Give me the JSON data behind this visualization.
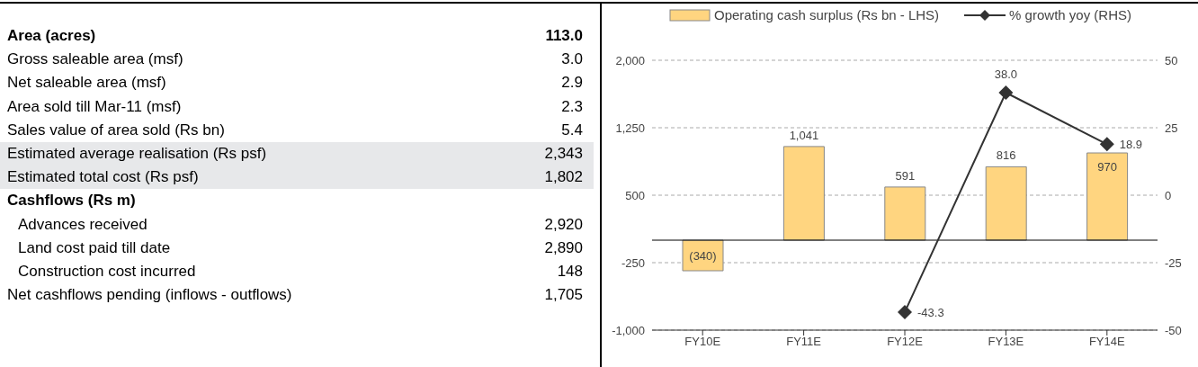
{
  "chart_data": [
    {
      "type": "other",
      "categories": [
        "Area (acres)",
        "Gross saleable area (msf)",
        "Net saleable area (msf)",
        "Area sold till Mar-11 (msf)",
        "Sales value of area sold (Rs bn)",
        "Estimated average realisation (Rs psf)",
        "Estimated total cost (Rs psf)",
        "Cashflows (Rs m)",
        "Advances received",
        "Land cost paid till date",
        "Construction cost incurred",
        "Net cashflows pending (inflows - outflows)"
      ],
      "value_labels": [
        "113.0",
        "3.0",
        "2.9",
        "2.3",
        "5.4",
        "2,343",
        "1,802",
        null,
        "2,920",
        "2,890",
        "148",
        "1,705"
      ]
    },
    {
      "type": "bar",
      "categories": [
        "FY10E",
        "FY11E",
        "FY12E",
        "FY13E",
        "FY14E"
      ],
      "series": [
        {
          "type": "bar",
          "name": "Operating cash surplus (Rs bn - LHS)",
          "color": "#ffd580",
          "values": [
            -340,
            1041,
            591,
            816,
            970
          ],
          "value_labels": [
            "(340)",
            "1,041",
            "591",
            "816",
            "970"
          ]
        },
        {
          "type": "line",
          "name": "% growth yoy (RHS)",
          "color": "#333333",
          "axis": "y2",
          "marker": "diamond",
          "values": [
            null,
            null,
            -43.3,
            38.0,
            18.9
          ],
          "value_labels": [
            null,
            null,
            "-43.3",
            "38.0",
            "18.9"
          ]
        }
      ],
      "ylim": [
        -1000,
        2000
      ],
      "yticks": [
        {
          "value": -1000,
          "label": "-1,000"
        },
        -250,
        500,
        {
          "value": 1250,
          "label": "1,250"
        },
        {
          "value": 2000,
          "label": "2,000"
        }
      ],
      "y2lim": [
        -50,
        50
      ],
      "y2ticks": [
        -50,
        -25,
        0,
        25,
        50
      ],
      "ref_lines": [
        {
          "axis": "y",
          "value": 0,
          "color": "#000000",
          "line_style": "solid"
        }
      ],
      "grid": "y",
      "legend": "top"
    }
  ]
}
